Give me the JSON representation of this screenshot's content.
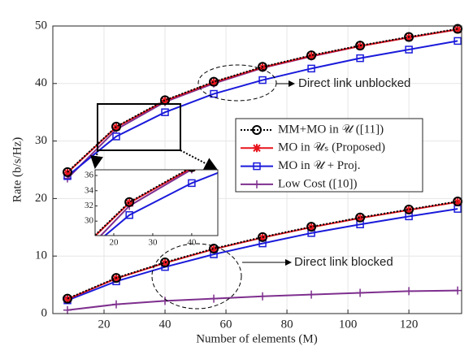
{
  "chart_data": {
    "type": "line",
    "x_label": "Number of elements (M)",
    "y_label": "Rate (b/s/Hz)",
    "x": [
      8,
      24,
      40,
      56,
      72,
      88,
      104,
      120,
      136
    ],
    "xlim": [
      3.2,
      137.3
    ],
    "xticks": [
      20,
      40,
      60,
      80,
      100,
      120
    ],
    "ylim": [
      0,
      50
    ],
    "yticks": [
      0,
      10,
      20,
      30,
      40,
      50
    ],
    "grid": true,
    "series": [
      {
        "name": "MM+MO in 𝒰 ([11])",
        "color": "#000000",
        "marker": "circle",
        "dash": "dotted",
        "values": [
          24.6,
          32.5,
          37.1,
          40.3,
          42.9,
          44.9,
          46.6,
          48.1,
          49.5
        ],
        "values_blocked": [
          2.6,
          6.2,
          8.9,
          11.3,
          13.3,
          15.1,
          16.7,
          18.1,
          19.5
        ]
      },
      {
        "name": "MO in 𝒰ₛ (Proposed)",
        "color": "#e8141c",
        "marker": "asterisk",
        "dash": "solid",
        "values": [
          24.5,
          32.4,
          37.0,
          40.2,
          42.8,
          44.8,
          46.5,
          48.0,
          49.4
        ],
        "values_blocked": [
          2.5,
          6.1,
          8.8,
          11.2,
          13.2,
          15.0,
          16.6,
          18.0,
          19.4
        ]
      },
      {
        "name": "MO in 𝒰 + Proj.",
        "color": "#1a1adb",
        "marker": "square",
        "dash": "solid",
        "values": [
          23.9,
          30.8,
          35.0,
          38.2,
          40.6,
          42.6,
          44.4,
          45.9,
          47.4
        ],
        "values_blocked": [
          2.3,
          5.6,
          8.1,
          10.3,
          12.2,
          14.0,
          15.5,
          16.9,
          18.2
        ]
      },
      {
        "name": "Low Cost ([10])",
        "color": "#7e2f8e",
        "marker": "plus",
        "dash": "solid",
        "values": [
          23.5,
          32.0,
          36.8,
          40.0,
          42.7,
          44.7,
          46.5,
          48.0,
          49.4
        ],
        "values_blocked": [
          0.6,
          1.6,
          2.2,
          2.6,
          3.0,
          3.3,
          3.6,
          3.9,
          4.0
        ]
      }
    ],
    "annotations": [
      "Direct link unblocked",
      "Direct link blocked"
    ],
    "inset": {
      "xlim": [
        15.2,
        46.7
      ],
      "ylim": [
        28.1,
        36.75
      ],
      "xticks": [
        20,
        30,
        40
      ],
      "yticks": [
        30,
        32,
        34,
        36
      ]
    }
  }
}
